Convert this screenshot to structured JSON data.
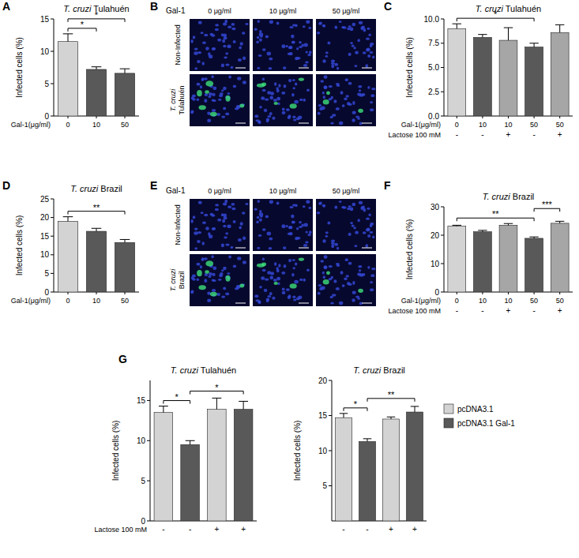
{
  "chart_data": [
    {
      "type": "bar",
      "panel": "A",
      "title": "T. cruzi Tulahuén",
      "y_label": "Infected cells (%)",
      "x_label": "Gal-1(μg/ml)",
      "categories": [
        "0",
        "10",
        "50"
      ],
      "ylim": [
        0,
        15
      ],
      "yticks": [
        0,
        5,
        10,
        15
      ],
      "series": [
        {
          "colors": [
            "#d3d3d3",
            "#595959",
            "#595959"
          ],
          "values": [
            11.5,
            7.2,
            6.6
          ],
          "errors": [
            1.2,
            0.4,
            0.7
          ]
        }
      ],
      "significance": [
        {
          "label": "*",
          "from": 0,
          "to": 1
        },
        {
          "label": "*",
          "from": 0,
          "to": 2
        }
      ]
    },
    {
      "type": "image",
      "panel": "B",
      "column_header": "Gal-1",
      "columns": [
        "0 μg/ml",
        "10 μg/ml",
        "50 μg/ml"
      ],
      "rows": [
        "Non-Infected",
        "T. cruzi Tulahuén"
      ]
    },
    {
      "type": "bar",
      "panel": "C",
      "title": "T. cruzi Tulahuén",
      "y_label": "Infected cells (%)",
      "x_label": "Gal-1(μg/ml)",
      "categories": [
        "0",
        "10",
        "10",
        "50",
        "50"
      ],
      "rows": [
        {
          "label": "Lactose 100 mM",
          "values": [
            "-",
            "-",
            "+",
            "-",
            "+"
          ]
        }
      ],
      "ylim": [
        0,
        10
      ],
      "yticks": [
        {
          "value": 0,
          "label": "0.0"
        },
        {
          "value": 2.5,
          "label": "2.5"
        },
        {
          "value": 5,
          "label": "5.0"
        },
        {
          "value": 7.5,
          "label": "7.5"
        },
        {
          "value": 10,
          "label": "10.0"
        }
      ],
      "series": [
        {
          "colors": [
            "#d3d3d3",
            "#595959",
            "#a6a6a6",
            "#595959",
            "#a6a6a6"
          ],
          "values": [
            9.0,
            8.1,
            7.8,
            7.1,
            8.6
          ],
          "errors": [
            0.5,
            0.3,
            1.3,
            0.4,
            0.8
          ]
        }
      ],
      "significance": [
        {
          "label": "*",
          "from": 0,
          "to": 3
        }
      ]
    },
    {
      "type": "bar",
      "panel": "D",
      "title": "T. cruzi Brazil",
      "y_label": "Infected cells (%)",
      "x_label": "Gal-1(μg/ml)",
      "categories": [
        "0",
        "10",
        "50"
      ],
      "ylim": [
        0,
        25
      ],
      "yticks": [
        0,
        5,
        10,
        15,
        20,
        25
      ],
      "series": [
        {
          "colors": [
            "#d3d3d3",
            "#595959",
            "#595959"
          ],
          "values": [
            19.0,
            16.3,
            13.3
          ],
          "errors": [
            1.2,
            0.8,
            0.8
          ]
        }
      ],
      "significance": [
        {
          "label": "**",
          "from": 0,
          "to": 2
        }
      ]
    },
    {
      "type": "image",
      "panel": "E",
      "column_header": "Gal-1",
      "columns": [
        "0 μg/ml",
        "10 μg/ml",
        "50 μg/ml"
      ],
      "rows": [
        "Non-Infected",
        "T. cruzi Brazil"
      ]
    },
    {
      "type": "bar",
      "panel": "F",
      "title": "T. cruzi Brazil",
      "y_label": "Infected cells (%)",
      "x_label": "Gal-1(μg/ml)",
      "categories": [
        "0",
        "10",
        "10",
        "50",
        "50"
      ],
      "rows": [
        {
          "label": "Lactose 100 mM",
          "values": [
            "-",
            "-",
            "+",
            "-",
            "+"
          ]
        }
      ],
      "ylim": [
        0,
        30
      ],
      "yticks": [
        0,
        10,
        20,
        30
      ],
      "series": [
        {
          "colors": [
            "#d3d3d3",
            "#595959",
            "#a6a6a6",
            "#595959",
            "#a6a6a6"
          ],
          "values": [
            23.2,
            21.2,
            23.5,
            18.9,
            24.2
          ],
          "errors": [
            0.3,
            0.5,
            0.6,
            0.5,
            0.7
          ]
        }
      ],
      "significance": [
        {
          "label": "**",
          "from": 0,
          "to": 3
        },
        {
          "label": "***",
          "from": 3,
          "to": 4
        }
      ]
    },
    {
      "type": "bar",
      "panel": "G",
      "title": "T. cruzi Tulahuén",
      "y_label": "Infected cells (%)",
      "categories": [
        null,
        null,
        null,
        null
      ],
      "rows": [
        {
          "label": "Lactose 100 mM",
          "values": [
            "-",
            "-",
            "+",
            "+"
          ]
        }
      ],
      "ylim": [
        0,
        17.5
      ],
      "yticks": [
        0,
        5,
        10,
        15
      ],
      "series": [
        {
          "color": "#d3d3d3",
          "values": [
            13.5,
            null,
            13.9,
            null
          ],
          "errors": [
            0.8,
            null,
            1.4,
            null
          ]
        },
        {
          "color": "#595959",
          "values": [
            null,
            9.5,
            null,
            13.9
          ],
          "errors": [
            null,
            0.5,
            null,
            1.0
          ]
        }
      ],
      "significance": [
        {
          "label": "*",
          "from": 0,
          "to": 1
        },
        {
          "label": "*",
          "from": 1,
          "to": 3
        }
      ]
    },
    {
      "type": "bar",
      "title": "T. cruzi Brazil",
      "y_label": "Infected cells (%)",
      "categories": [
        null,
        null,
        null,
        null
      ],
      "rows": [
        {
          "values": [
            "-",
            "-",
            "+",
            "+"
          ]
        }
      ],
      "ylim": [
        0,
        20
      ],
      "yticks": [
        5,
        10,
        15,
        20
      ],
      "legend": "right",
      "series": [
        {
          "name": "pcDNA3.1",
          "color": "#d3d3d3",
          "values": [
            14.7,
            null,
            14.5,
            null
          ],
          "errors": [
            0.6,
            null,
            0.3,
            null
          ]
        },
        {
          "name": "pcDNA3.1 Gal-1",
          "color": "#595959",
          "values": [
            null,
            11.3,
            null,
            15.5
          ],
          "errors": [
            null,
            0.4,
            null,
            0.8
          ]
        }
      ],
      "significance": [
        {
          "label": "*",
          "from": 0,
          "to": 1
        },
        {
          "label": "**",
          "from": 1,
          "to": 3
        }
      ]
    }
  ]
}
